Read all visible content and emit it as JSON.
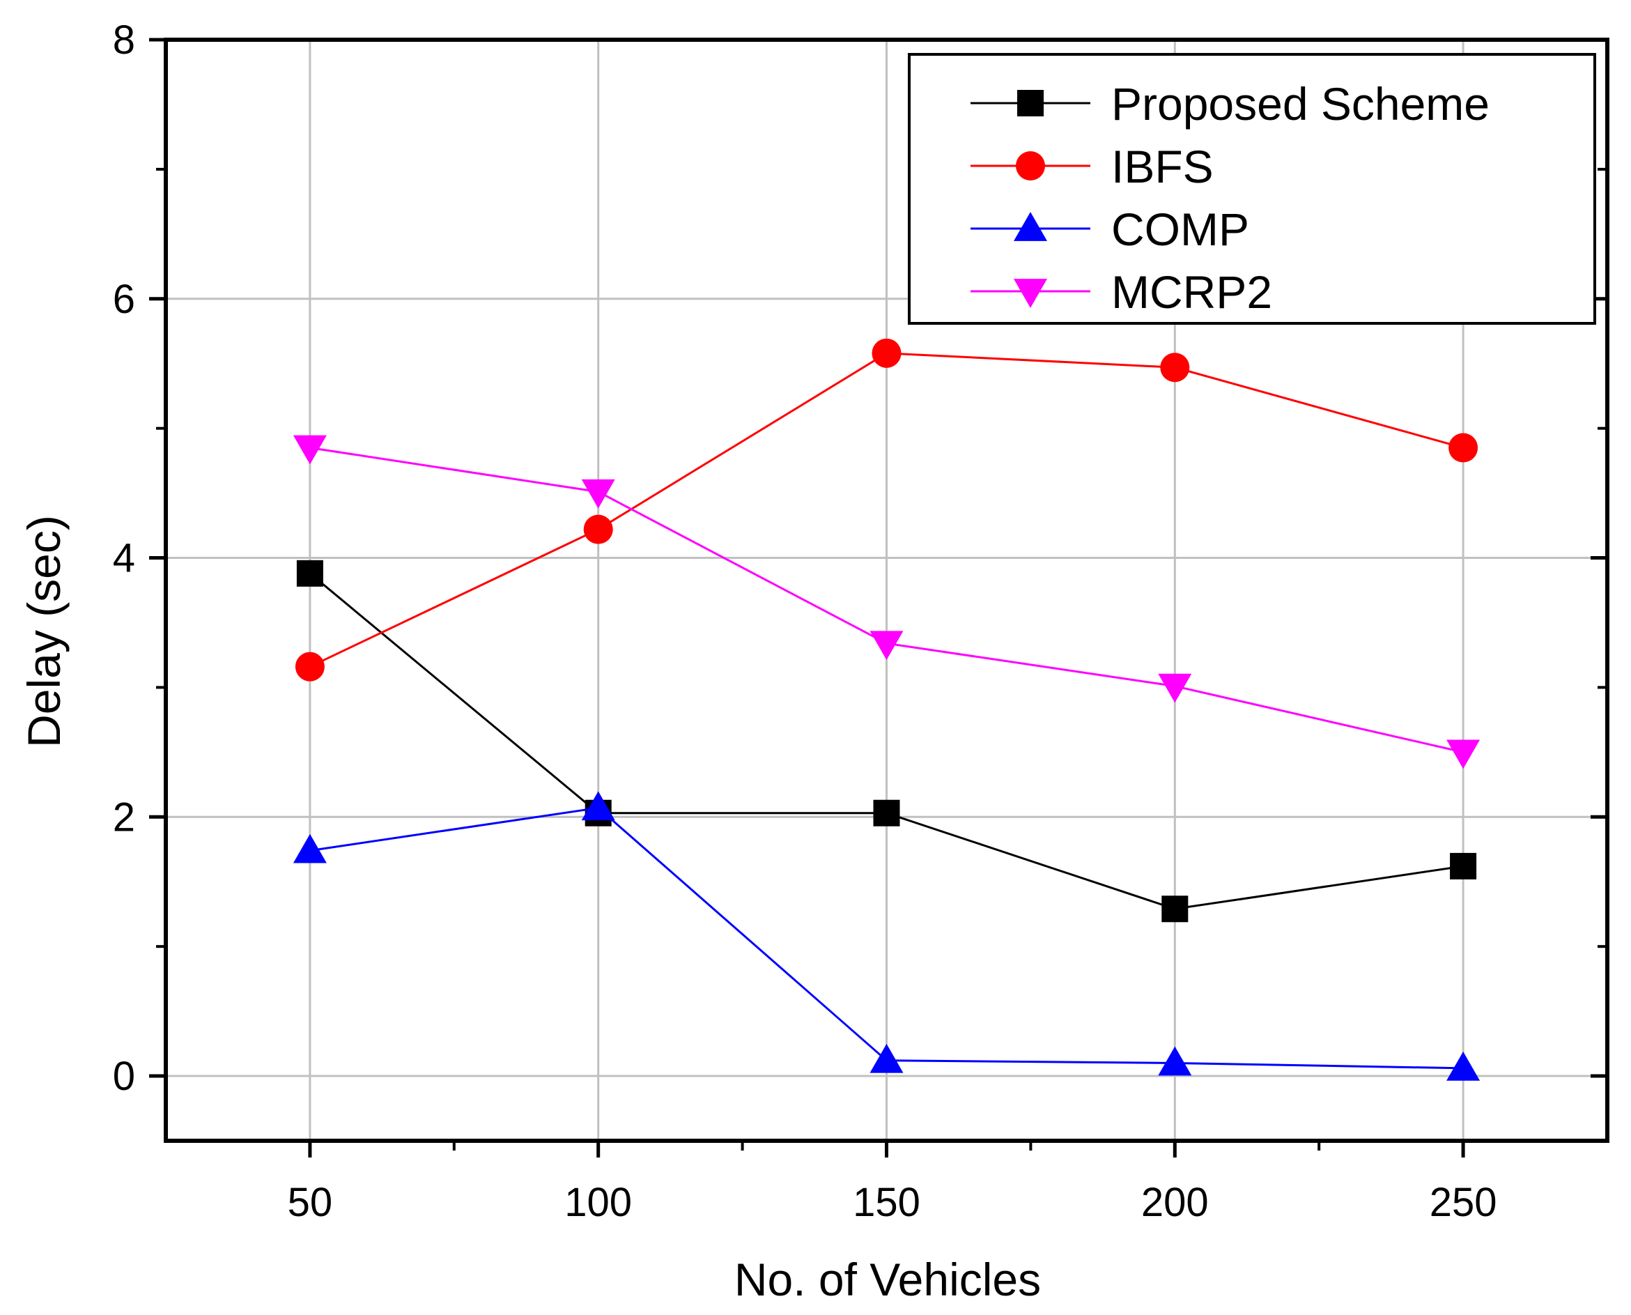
{
  "chart_data": {
    "type": "line",
    "title": "",
    "xlabel": "No. of Vehicles",
    "ylabel": "Delay (sec)",
    "x": [
      50,
      100,
      150,
      200,
      250
    ],
    "xlim": [
      25,
      275
    ],
    "ylim": [
      -0.5,
      8
    ],
    "xticks": [
      50,
      100,
      150,
      200,
      250
    ],
    "xtick_labels": [
      "50",
      "100",
      "150",
      "200",
      "250"
    ],
    "yticks": [
      0,
      2,
      4,
      6,
      8
    ],
    "ytick_labels": [
      "0",
      "2",
      "4",
      "6",
      "8"
    ],
    "grid": true,
    "legend_position": "top-right",
    "series": [
      {
        "name": "Proposed Scheme",
        "color": "#000000",
        "marker": "square",
        "values": [
          3.88,
          2.03,
          2.03,
          1.29,
          1.62
        ]
      },
      {
        "name": "IBFS",
        "color": "#ff0000",
        "marker": "circle",
        "values": [
          3.16,
          4.22,
          5.58,
          5.47,
          4.85
        ]
      },
      {
        "name": "COMP",
        "color": "#0000ff",
        "marker": "triangle-up",
        "values": [
          1.74,
          2.07,
          0.12,
          0.1,
          0.06
        ]
      },
      {
        "name": "MCRP2",
        "color": "#ff00ff",
        "marker": "triangle-down",
        "values": [
          4.85,
          4.51,
          3.34,
          3.01,
          2.5
        ]
      }
    ]
  }
}
